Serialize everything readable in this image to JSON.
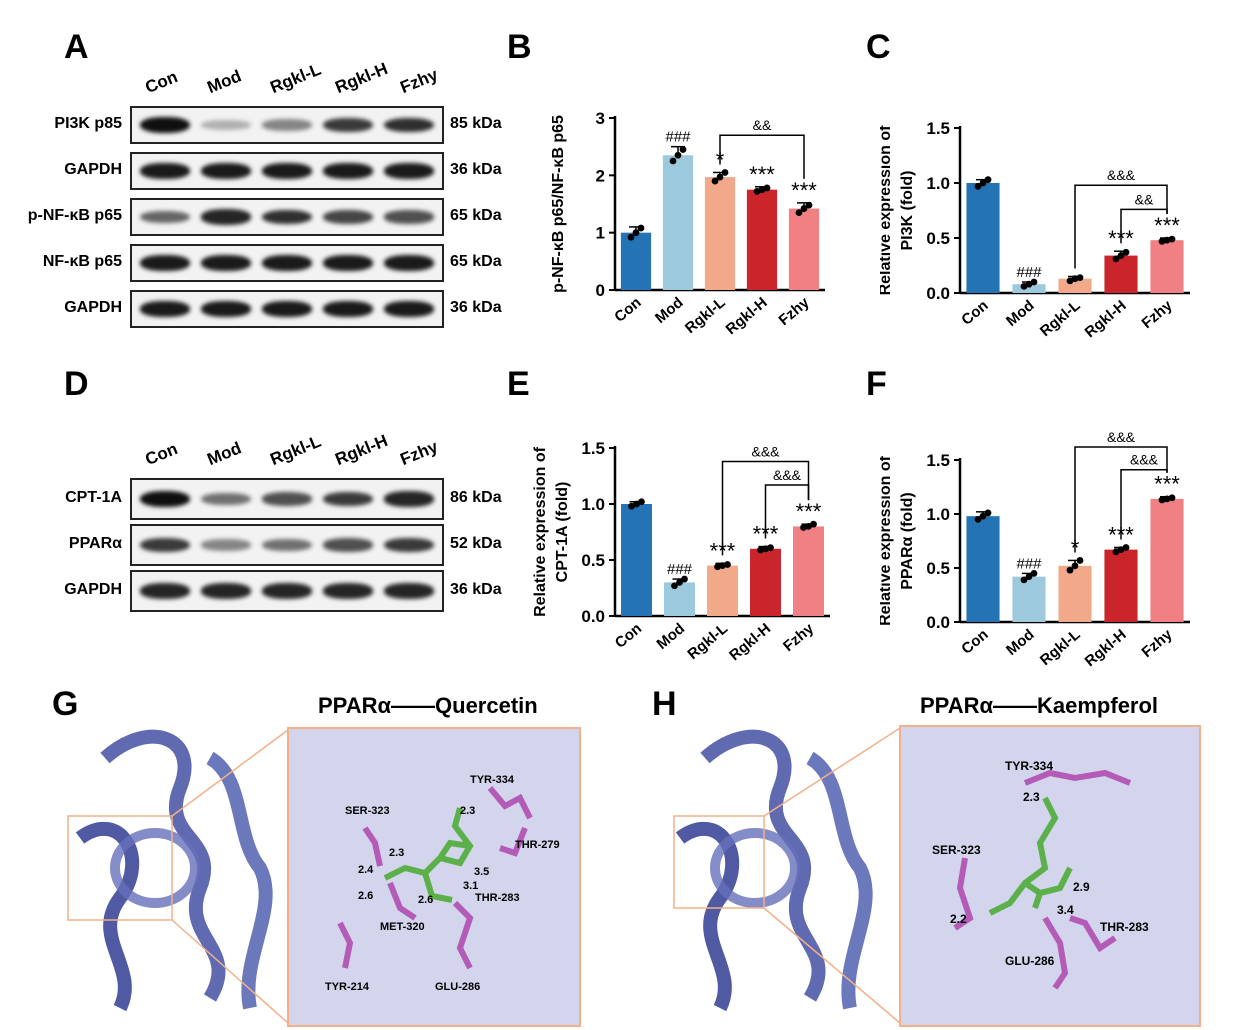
{
  "panels": {
    "A": "A",
    "B": "B",
    "C": "C",
    "D": "D",
    "E": "E",
    "F": "F",
    "G": "G",
    "H": "H"
  },
  "western_blot_A": {
    "lanes": [
      "Con",
      "Mod",
      "Rgkl-L",
      "Rgkl-H",
      "Fzhy"
    ],
    "rows": [
      {
        "label": "PI3K p85",
        "kda": "85 kDa",
        "intensity": [
          1.0,
          0.25,
          0.45,
          0.8,
          0.85
        ]
      },
      {
        "label": "GAPDH",
        "kda": "36 kDa",
        "intensity": [
          0.95,
          0.95,
          0.95,
          0.95,
          0.95
        ]
      },
      {
        "label": "p-NF-κB p65",
        "kda": "65 kDa",
        "intensity": [
          0.6,
          0.9,
          0.85,
          0.75,
          0.7
        ]
      },
      {
        "label": "NF-κB p65",
        "kda": "65 kDa",
        "intensity": [
          0.95,
          0.95,
          0.95,
          0.95,
          0.95
        ]
      },
      {
        "label": "GAPDH",
        "kda": "36 kDa",
        "intensity": [
          0.95,
          0.95,
          0.95,
          0.95,
          0.95
        ]
      }
    ]
  },
  "western_blot_D": {
    "lanes": [
      "Con",
      "Mod",
      "Rgkl-L",
      "Rgkl-H",
      "Fzhy"
    ],
    "rows": [
      {
        "label": "CPT-1A",
        "kda": "86 kDa",
        "intensity": [
          1.0,
          0.55,
          0.7,
          0.8,
          0.9
        ]
      },
      {
        "label": "PPARα",
        "kda": "52 kDa",
        "intensity": [
          0.8,
          0.45,
          0.55,
          0.7,
          0.8
        ]
      },
      {
        "label": "GAPDH",
        "kda": "36 kDa",
        "intensity": [
          0.9,
          0.9,
          0.9,
          0.9,
          0.9
        ]
      }
    ]
  },
  "chart_data": [
    {
      "panel": "B",
      "type": "bar",
      "categories": [
        "Con",
        "Mod",
        "Rgkl-L",
        "Rgkl-H",
        "Fzhy"
      ],
      "values": [
        1.0,
        2.35,
        1.97,
        1.75,
        1.42
      ],
      "errors": [
        0.1,
        0.15,
        0.08,
        0.05,
        0.1
      ],
      "points": [
        [
          0.92,
          1.0,
          1.08
        ],
        [
          2.25,
          2.35,
          2.45
        ],
        [
          1.9,
          1.97,
          2.05
        ],
        [
          1.72,
          1.75,
          1.78
        ],
        [
          1.35,
          1.42,
          1.48
        ]
      ],
      "colors": [
        "#2474b5",
        "#9cc9dc",
        "#f2a98a",
        "#c9252b",
        "#f08082"
      ],
      "markers": [
        "",
        "###",
        "*",
        "***",
        "***"
      ],
      "brackets": [
        {
          "from": 2,
          "to": 4,
          "level": 2.7,
          "label": "&&"
        }
      ],
      "ylabel": "p-NF-κB p65/NF-κB p65",
      "ylim": [
        0,
        3
      ],
      "yticks": [
        "0",
        "1",
        "2",
        "3"
      ],
      "ytick_values": [
        0,
        1,
        2,
        3
      ]
    },
    {
      "panel": "C",
      "type": "bar",
      "categories": [
        "Con",
        "Mod",
        "Rgkl-L",
        "Rgkl-H",
        "Fzhy"
      ],
      "values": [
        1.0,
        0.08,
        0.13,
        0.34,
        0.48
      ],
      "errors": [
        0.03,
        0.02,
        0.02,
        0.04,
        0.02
      ],
      "points": [
        [
          0.97,
          1.0,
          1.03
        ],
        [
          0.06,
          0.08,
          0.1
        ],
        [
          0.11,
          0.13,
          0.14
        ],
        [
          0.31,
          0.34,
          0.37
        ],
        [
          0.47,
          0.48,
          0.49
        ]
      ],
      "colors": [
        "#2474b5",
        "#9cc9dc",
        "#f2a98a",
        "#c9252b",
        "#f08082"
      ],
      "markers": [
        "",
        "###",
        "",
        "***",
        "***"
      ],
      "brackets": [
        {
          "from": 2,
          "to": 4,
          "level": 0.98,
          "label": "&&&"
        },
        {
          "from": 3,
          "to": 4,
          "level": 0.76,
          "label": "&&"
        }
      ],
      "ylabel": "Relative expression of PI3K (fold)",
      "ylabel_lines": [
        "Relative expression of",
        "PI3K (fold)"
      ],
      "ylim": [
        0,
        1.5
      ],
      "yticks": [
        "0.0",
        "0.5",
        "1.0",
        "1.5"
      ],
      "ytick_values": [
        0,
        0.5,
        1.0,
        1.5
      ]
    },
    {
      "panel": "E",
      "type": "bar",
      "categories": [
        "Con",
        "Mod",
        "Rgkl-L",
        "Rgkl-H",
        "Fzhy"
      ],
      "values": [
        1.0,
        0.3,
        0.45,
        0.6,
        0.8
      ],
      "errors": [
        0.02,
        0.03,
        0.02,
        0.02,
        0.02
      ],
      "points": [
        [
          0.98,
          1.0,
          1.02
        ],
        [
          0.27,
          0.3,
          0.33
        ],
        [
          0.44,
          0.45,
          0.46
        ],
        [
          0.59,
          0.6,
          0.61
        ],
        [
          0.79,
          0.8,
          0.82
        ]
      ],
      "colors": [
        "#2474b5",
        "#9cc9dc",
        "#f2a98a",
        "#c9252b",
        "#f08082"
      ],
      "markers": [
        "",
        "###",
        "***",
        "***",
        "***"
      ],
      "brackets": [
        {
          "from": 2,
          "to": 4,
          "level": 1.38,
          "label": "&&&"
        },
        {
          "from": 3,
          "to": 4,
          "level": 1.17,
          "label": "&&&"
        }
      ],
      "ylabel": "Relative expression of CPT-1A (fold)",
      "ylabel_lines": [
        "Relative expression of",
        "CPT-1A (fold)"
      ],
      "ylim": [
        0,
        1.5
      ],
      "yticks": [
        "0.0",
        "0.5",
        "1.0",
        "1.5"
      ],
      "ytick_values": [
        0,
        0.5,
        1.0,
        1.5
      ]
    },
    {
      "panel": "F",
      "type": "bar",
      "categories": [
        "Con",
        "Mod",
        "Rgkl-L",
        "Rgkl-H",
        "Fzhy"
      ],
      "values": [
        0.98,
        0.42,
        0.52,
        0.67,
        1.14
      ],
      "errors": [
        0.04,
        0.03,
        0.05,
        0.02,
        0.02
      ],
      "points": [
        [
          0.95,
          0.98,
          1.01
        ],
        [
          0.39,
          0.42,
          0.45
        ],
        [
          0.48,
          0.52,
          0.57
        ],
        [
          0.65,
          0.67,
          0.69
        ],
        [
          1.13,
          1.14,
          1.15
        ]
      ],
      "colors": [
        "#2474b5",
        "#9cc9dc",
        "#f2a98a",
        "#c9252b",
        "#f08082"
      ],
      "markers": [
        "",
        "###",
        "*",
        "***",
        "***"
      ],
      "brackets": [
        {
          "from": 2,
          "to": 4,
          "level": 1.62,
          "label": "&&&"
        },
        {
          "from": 3,
          "to": 4,
          "level": 1.41,
          "label": "&&&"
        }
      ],
      "ylabel": "Relative expression of PPARα (fold)",
      "ylabel_lines": [
        "Relative expression of",
        "PPARα (fold)"
      ],
      "ylim": [
        0,
        1.5
      ],
      "yticks": [
        "0.0",
        "0.5",
        "1.0",
        "1.5"
      ],
      "ytick_values": [
        0,
        0.5,
        1.0,
        1.5
      ]
    }
  ],
  "docking_G": {
    "title": "PPARα——Quercetin",
    "residues": [
      "SER-323",
      "TYR-334",
      "THR-279",
      "THR-283",
      "MET-320",
      "TYR-214",
      "GLU-286"
    ],
    "distances": [
      "2.3",
      "2.4",
      "2.3",
      "2.6",
      "2.6",
      "3.5",
      "3.1"
    ]
  },
  "docking_H": {
    "title": "PPARα——Kaempferol",
    "residues": [
      "TYR-334",
      "SER-323",
      "GLU-286",
      "THR-283"
    ],
    "distances": [
      "2.3",
      "2.2",
      "2.9",
      "3.4"
    ]
  }
}
